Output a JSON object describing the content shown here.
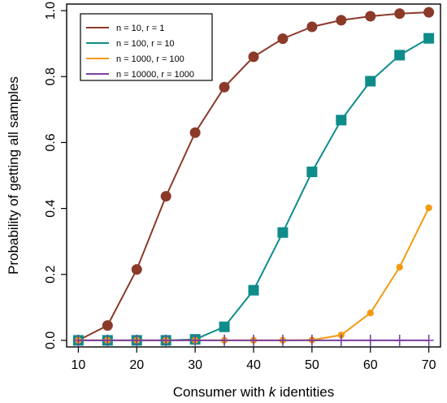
{
  "chart_data": {
    "type": "line",
    "xlabel_prefix": "Consumer with ",
    "xlabel_var": "k",
    "xlabel_suffix": " identities",
    "ylabel": "Probability of getting all samples",
    "x": [
      10,
      15,
      20,
      25,
      30,
      35,
      40,
      45,
      50,
      55,
      60,
      65,
      70
    ],
    "xlim": [
      8,
      72
    ],
    "ylim": [
      -0.02,
      1.02
    ],
    "x_ticks": [
      10,
      20,
      30,
      40,
      50,
      60,
      70
    ],
    "y_ticks": [
      0.0,
      0.2,
      0.4,
      0.6,
      0.8,
      1.0
    ],
    "y_tick_labels": [
      "0.0",
      "0.2",
      "0.4",
      "0.6",
      "0.8",
      "1.0"
    ],
    "legend_position": "top-left",
    "series": [
      {
        "name": "n = 10, r = 1",
        "color": "#8B3A2A",
        "marker": "circle",
        "values": [
          0.0,
          0.045,
          0.215,
          0.437,
          0.63,
          0.768,
          0.86,
          0.915,
          0.951,
          0.971,
          0.983,
          0.991,
          0.995
        ]
      },
      {
        "name": "n = 100, r = 10",
        "color": "#0E8C8A",
        "marker": "square",
        "values": [
          0.0,
          0.0,
          0.0,
          0.0,
          0.003,
          0.041,
          0.152,
          0.327,
          0.511,
          0.668,
          0.786,
          0.865,
          0.916
        ]
      },
      {
        "name": "n = 1000, r = 100",
        "color": "#F39A12",
        "marker": "circle",
        "values": [
          0.0,
          0.0,
          0.0,
          0.0,
          0.0,
          0.0,
          0.0,
          0.0,
          0.001,
          0.016,
          0.083,
          0.222,
          0.402
        ]
      },
      {
        "name": "n = 10000, r = 1000",
        "color": "#7B3F9E",
        "marker": "plus",
        "values": [
          0.0,
          0.0,
          0.0,
          0.0,
          0.0,
          0.0,
          0.0,
          0.0,
          0.0,
          0.0,
          0.0,
          0.0,
          0.0
        ]
      }
    ]
  }
}
